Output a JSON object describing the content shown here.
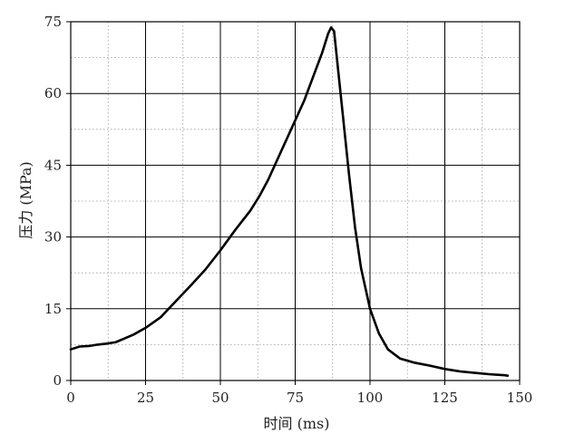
{
  "chart_data": {
    "type": "line",
    "title": "",
    "xlabel": "时间 (ms)",
    "ylabel": "压力 (MPa)",
    "xlim": [
      0,
      150
    ],
    "ylim": [
      0,
      75
    ],
    "xticks": [
      0,
      25,
      50,
      75,
      100,
      125,
      150
    ],
    "yticks": [
      0,
      15,
      30,
      45,
      60,
      75
    ],
    "grid": {
      "major": true,
      "minor": true,
      "major_style": "solid",
      "minor_style": "dotted"
    },
    "legend": "none",
    "series": [
      {
        "color": "#000000",
        "x": [
          0,
          3,
          6,
          9,
          12,
          15,
          18,
          21,
          25,
          30,
          35,
          40,
          45,
          50,
          55,
          60,
          63,
          66,
          70,
          74,
          78,
          81,
          84,
          86,
          87,
          88,
          89,
          91,
          93,
          95,
          97,
          100,
          103,
          106,
          110,
          115,
          120,
          125,
          130,
          135,
          140,
          145,
          146
        ],
        "y": [
          6.5,
          7.1,
          7.2,
          7.5,
          7.7,
          8.0,
          8.8,
          9.6,
          11.0,
          13.2,
          16.5,
          19.8,
          23.2,
          27.2,
          31.5,
          35.5,
          38.5,
          42.0,
          47.5,
          53.0,
          58.5,
          63.5,
          68.5,
          72.5,
          73.8,
          73.0,
          67.0,
          55.0,
          43.0,
          32.0,
          23.5,
          15.0,
          9.8,
          6.5,
          4.6,
          3.7,
          3.1,
          2.4,
          1.9,
          1.6,
          1.3,
          1.1,
          1.0
        ]
      }
    ]
  }
}
